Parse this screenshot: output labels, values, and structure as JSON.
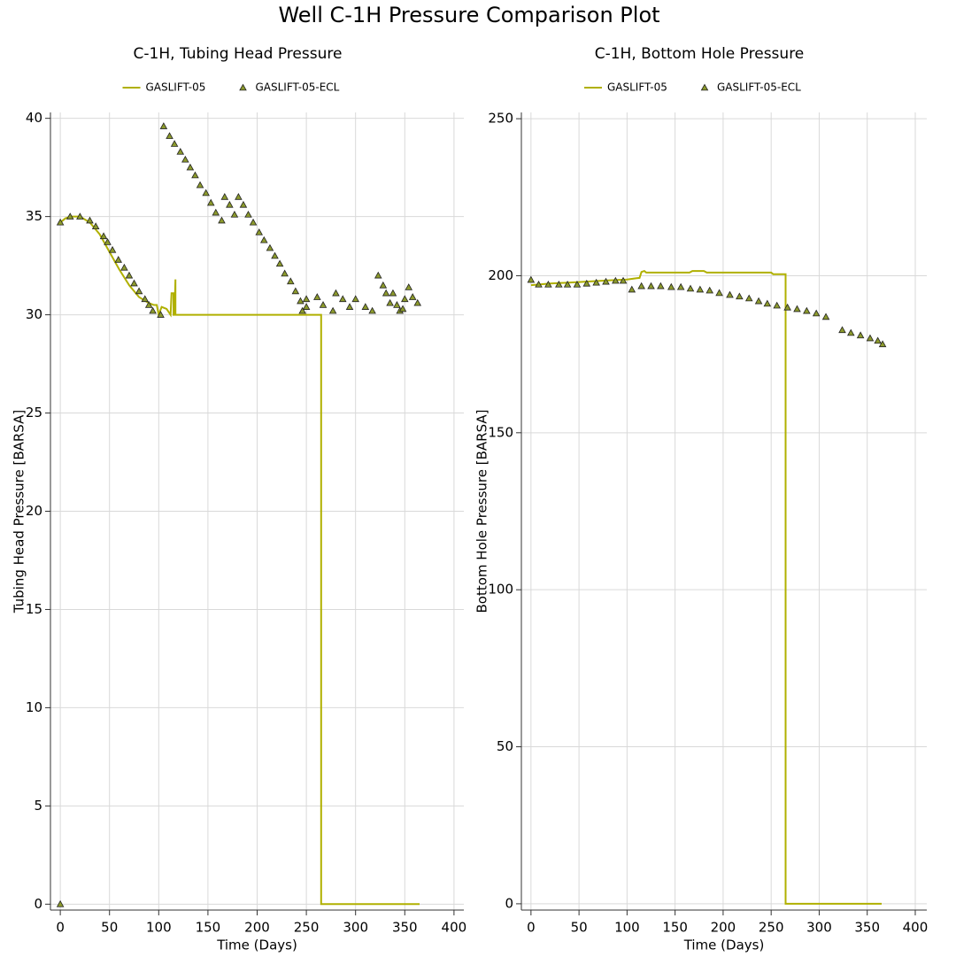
{
  "title": "Well C-1H Pressure Comparison Plot",
  "chart_data": [
    {
      "type": "line",
      "title": "C-1H, Tubing Head Pressure",
      "x_label": "Time (Days)",
      "y_label": "Tubing Head Pressure [BARSA]",
      "xlim": [
        -10,
        410
      ],
      "ylim": [
        -0.3,
        40.3
      ],
      "xticks": [
        0,
        50,
        100,
        150,
        200,
        250,
        300,
        350,
        400
      ],
      "yticks": [
        0,
        5,
        10,
        15,
        20,
        25,
        30,
        35,
        40
      ],
      "grid": true,
      "legend": "top",
      "series": [
        {
          "name": "GASLIFT-05",
          "mode": "line",
          "color": "#b0b000",
          "x": [
            0,
            5,
            10,
            20,
            30,
            40,
            50,
            60,
            70,
            80,
            90,
            95,
            98,
            100,
            103,
            108,
            112,
            113,
            115,
            115,
            116,
            117,
            117,
            118,
            120,
            265,
            265,
            365
          ],
          "values": [
            34.7,
            34.9,
            35.0,
            35.0,
            34.7,
            34.1,
            33.2,
            32.3,
            31.5,
            30.9,
            30.6,
            30.5,
            30.5,
            30.0,
            30.4,
            30.3,
            30.0,
            31.1,
            31.1,
            30.0,
            30.0,
            31.8,
            30.0,
            30.0,
            30.0,
            30.0,
            0,
            0
          ]
        },
        {
          "name": "GASLIFT-05-ECL",
          "mode": "markers",
          "color": "#8c9a2c",
          "x": [
            0,
            0,
            10,
            20,
            30,
            36,
            44,
            48,
            53,
            59,
            65,
            70,
            75,
            80,
            86,
            90,
            94,
            102,
            105,
            111,
            116,
            122,
            127,
            132,
            137,
            142,
            148,
            153,
            158,
            164,
            167,
            172,
            177,
            181,
            186,
            191,
            196,
            202,
            207,
            213,
            218,
            223,
            228,
            234,
            239,
            244,
            246,
            250,
            250,
            261,
            267,
            277,
            280,
            287,
            294,
            300,
            310,
            317,
            323,
            328,
            331,
            335,
            338,
            342,
            345,
            348,
            350,
            354,
            358,
            363
          ],
          "values": [
            0,
            34.7,
            35.0,
            35.0,
            34.8,
            34.5,
            34.0,
            33.7,
            33.3,
            32.8,
            32.4,
            32.0,
            31.6,
            31.2,
            30.8,
            30.5,
            30.2,
            30.0,
            39.6,
            39.1,
            38.7,
            38.3,
            37.9,
            37.5,
            37.1,
            36.6,
            36.2,
            35.7,
            35.2,
            34.8,
            36.0,
            35.6,
            35.1,
            36.0,
            35.6,
            35.1,
            34.7,
            34.2,
            33.8,
            33.4,
            33.0,
            32.6,
            32.1,
            31.7,
            31.2,
            30.7,
            30.2,
            30.4,
            30.8,
            30.9,
            30.5,
            30.2,
            31.1,
            30.8,
            30.4,
            30.8,
            30.4,
            30.2,
            32.0,
            31.5,
            31.1,
            30.6,
            31.1,
            30.5,
            30.2,
            30.3,
            30.8,
            31.4,
            30.9,
            30.6
          ]
        }
      ]
    },
    {
      "type": "line",
      "title": "C-1H, Bottom Hole Pressure",
      "x_label": "Time (Days)",
      "y_label": "Bottom Hole Pressure [BARSA]",
      "xlim": [
        -10,
        412
      ],
      "ylim": [
        -2,
        252
      ],
      "xticks": [
        0,
        50,
        100,
        150,
        200,
        250,
        300,
        350,
        400
      ],
      "yticks": [
        0,
        50,
        100,
        150,
        200,
        250
      ],
      "grid": true,
      "legend": "top",
      "series": [
        {
          "name": "GASLIFT-05",
          "mode": "line",
          "color": "#b0b000",
          "x": [
            0,
            20,
            50,
            80,
            100,
            110,
            113,
            115,
            118,
            120,
            165,
            168,
            180,
            183,
            250,
            252,
            265,
            265,
            365
          ],
          "values": [
            197,
            197.5,
            198,
            198.5,
            198.8,
            199.2,
            199.3,
            201.2,
            201.5,
            201,
            201,
            201.5,
            201.5,
            201,
            201,
            200.5,
            200.5,
            0,
            0
          ]
        },
        {
          "name": "GASLIFT-05-ECL",
          "mode": "markers",
          "color": "#8c9a2c",
          "x": [
            0,
            8,
            18,
            29,
            38,
            48,
            58,
            68,
            78,
            88,
            96,
            105,
            115,
            125,
            135,
            146,
            156,
            166,
            176,
            186,
            196,
            207,
            217,
            227,
            237,
            246,
            256,
            267,
            277,
            287,
            297,
            307,
            324,
            333,
            343,
            353,
            361,
            366
          ],
          "values": [
            198.7,
            197.2,
            197.2,
            197.2,
            197.2,
            197.2,
            197.5,
            197.8,
            198.1,
            198.4,
            198.4,
            195.6,
            196.7,
            196.7,
            196.7,
            196.4,
            196.4,
            195.9,
            195.6,
            195.3,
            194.5,
            193.9,
            193.4,
            192.8,
            191.9,
            191.1,
            190.5,
            189.9,
            189.4,
            188.8,
            188.0,
            186.9,
            182.7,
            181.8,
            181.0,
            180.1,
            179.3,
            178.2
          ]
        }
      ]
    }
  ]
}
